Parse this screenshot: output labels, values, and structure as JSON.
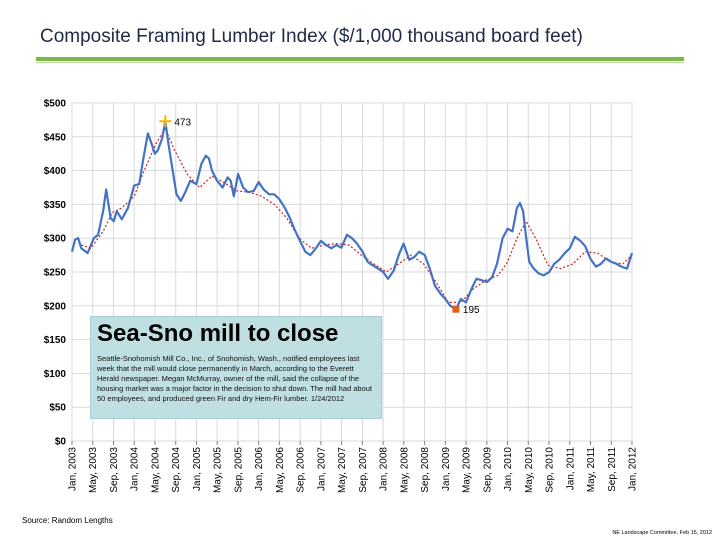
{
  "slide": {
    "title": "Composite Framing Lumber Index ($/1,000 thousand board feet)",
    "source": "Source: Random Lengths",
    "footer": "NE Landscape Committee, Feb 15, 2012"
  },
  "callout": {
    "title": "Sea-Sno mill to close",
    "body": "Seattle-Snohomish Mill Co., Inc., of Snohomish, Wash., notified employees last week that the mill would close permanently in March, according to the Everett Herald newspaper. Megan McMurray, owner of the mill, said the collapse of the housing market was a major factor in the decision to shut down. The mill had about 50 employees, and produced green Fir and dry Hem-Fir lumber. 1/24/2012"
  },
  "colors": {
    "series": "#4472c4",
    "trend": "#cc2222",
    "grid": "#d9d9d9",
    "peak_marker": "#f4b400",
    "trough_marker": "#e06020"
  },
  "chart_data": {
    "type": "line",
    "title": "",
    "xlabel": "",
    "ylabel": "",
    "ylim": [
      0,
      500
    ],
    "xlim": [
      2003.0,
      2012.0
    ],
    "yticks": [
      0,
      50,
      100,
      150,
      200,
      250,
      300,
      350,
      400,
      450,
      500
    ],
    "ytick_labels": [
      "$0",
      "$50",
      "$100",
      "$150",
      "$200",
      "$250",
      "$300",
      "$350",
      "$400",
      "$450",
      "$500"
    ],
    "xticks": [
      2003.0,
      2003.333,
      2003.667,
      2004.0,
      2004.333,
      2004.667,
      2005.0,
      2005.333,
      2005.667,
      2006.0,
      2006.333,
      2006.667,
      2007.0,
      2007.333,
      2007.667,
      2008.0,
      2008.333,
      2008.667,
      2009.0,
      2009.333,
      2009.667,
      2010.0,
      2010.333,
      2010.667,
      2011.0,
      2011.333,
      2011.667,
      2012.0
    ],
    "xtick_labels": [
      "Jan, 2003",
      "May, 2003",
      "Sep, 2003",
      "Jan, 2004",
      "May, 2004",
      "Sep, 2004",
      "Jan, 2005",
      "May, 2005",
      "Sep, 2005",
      "Jan, 2006",
      "May, 2006",
      "Sep, 2006",
      "Jan, 2007",
      "May, 2007",
      "Sep, 2007",
      "Jan, 2008",
      "May, 2008",
      "Sep, 2008",
      "Jan, 2009",
      "May, 2009",
      "Sep, 2009",
      "Jan, 2010",
      "May, 2010",
      "Sep, 2010",
      "Jan, 2011",
      "May, 2011",
      "Sep, 2011",
      "Jan, 2012"
    ],
    "grid": true,
    "series": [
      {
        "x": [
          2003.0,
          2003.05,
          2003.1,
          2003.15,
          2003.25,
          2003.35,
          2003.42,
          2003.5,
          2003.55,
          2003.62,
          2003.67,
          2003.72,
          2003.8,
          2003.9,
          2004.0,
          2004.08,
          2004.15,
          2004.22,
          2004.28,
          2004.33,
          2004.38,
          2004.45,
          2004.5,
          2004.55,
          2004.6,
          2004.68,
          2004.75,
          2004.83,
          2004.9,
          2005.0,
          2005.08,
          2005.15,
          2005.2,
          2005.25,
          2005.33,
          2005.42,
          2005.5,
          2005.55,
          2005.6,
          2005.67,
          2005.75,
          2005.83,
          2005.92,
          2006.0,
          2006.08,
          2006.17,
          2006.25,
          2006.33,
          2006.42,
          2006.5,
          2006.58,
          2006.67,
          2006.75,
          2006.83,
          2006.92,
          2007.0,
          2007.08,
          2007.17,
          2007.25,
          2007.33,
          2007.42,
          2007.5,
          2007.58,
          2007.67,
          2007.75,
          2007.83,
          2007.92,
          2008.0,
          2008.08,
          2008.17,
          2008.25,
          2008.33,
          2008.42,
          2008.5,
          2008.58,
          2008.67,
          2008.75,
          2008.83,
          2008.92,
          2009.0,
          2009.08,
          2009.17,
          2009.25,
          2009.33,
          2009.42,
          2009.5,
          2009.58,
          2009.67,
          2009.75,
          2009.83,
          2009.92,
          2010.0,
          2010.08,
          2010.15,
          2010.2,
          2010.25,
          2010.3,
          2010.35,
          2010.42,
          2010.5,
          2010.58,
          2010.67,
          2010.75,
          2010.83,
          2010.92,
          2011.0,
          2011.08,
          2011.17,
          2011.25,
          2011.33,
          2011.42,
          2011.5,
          2011.58,
          2011.67,
          2011.75,
          2011.83,
          2011.92,
          2012.0
        ],
        "values": [
          280,
          298,
          300,
          285,
          278,
          300,
          305,
          340,
          372,
          330,
          325,
          340,
          328,
          345,
          378,
          380,
          420,
          455,
          440,
          425,
          430,
          448,
          473,
          440,
          410,
          365,
          355,
          370,
          385,
          380,
          410,
          422,
          418,
          400,
          385,
          375,
          390,
          385,
          362,
          395,
          375,
          368,
          370,
          383,
          372,
          365,
          365,
          358,
          345,
          330,
          312,
          295,
          280,
          275,
          285,
          296,
          290,
          285,
          290,
          286,
          305,
          300,
          292,
          280,
          265,
          260,
          255,
          250,
          240,
          252,
          275,
          292,
          268,
          272,
          280,
          275,
          255,
          230,
          218,
          210,
          200,
          195,
          210,
          205,
          225,
          240,
          238,
          235,
          242,
          262,
          300,
          314,
          310,
          345,
          352,
          340,
          300,
          265,
          255,
          248,
          245,
          250,
          262,
          268,
          278,
          285,
          302,
          296,
          288,
          270,
          258,
          262,
          270,
          265,
          262,
          258,
          255,
          278
        ]
      },
      {
        "x": [
          2003.15,
          2003.3,
          2003.5,
          2003.65,
          2003.8,
          2004.0,
          2004.15,
          2004.35,
          2004.5,
          2004.65,
          2004.85,
          2005.05,
          2005.25,
          2005.45,
          2005.65,
          2005.85,
          2006.05,
          2006.25,
          2006.45,
          2006.65,
          2006.85,
          2007.05,
          2007.25,
          2007.45,
          2007.65,
          2007.85,
          2008.05,
          2008.25,
          2008.45,
          2008.65,
          2008.85,
          2009.05,
          2009.25,
          2009.45,
          2009.65,
          2009.85,
          2010.0,
          2010.15,
          2010.3,
          2010.45,
          2010.65,
          2010.85,
          2011.05,
          2011.25,
          2011.45,
          2011.65,
          2011.85,
          2012.0
        ],
        "values": [
          290,
          285,
          310,
          338,
          345,
          362,
          398,
          440,
          462,
          430,
          395,
          375,
          392,
          382,
          370,
          368,
          362,
          350,
          330,
          300,
          285,
          290,
          292,
          290,
          275,
          262,
          250,
          262,
          275,
          262,
          235,
          205,
          205,
          225,
          238,
          245,
          265,
          300,
          325,
          300,
          260,
          255,
          262,
          280,
          278,
          265,
          262,
          275
        ]
      }
    ],
    "annotations": [
      {
        "text": "473",
        "x": 2004.5,
        "y": 473
      },
      {
        "text": "195",
        "x": 2009.17,
        "y": 195
      }
    ]
  }
}
